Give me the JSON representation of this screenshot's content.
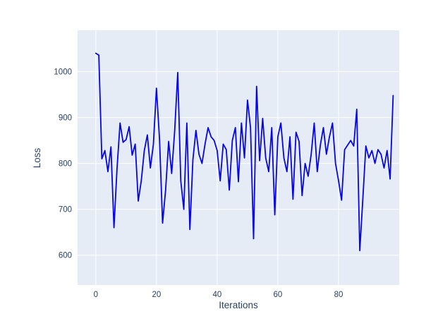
{
  "chart_data": {
    "type": "line",
    "title": "",
    "xlabel": "Iterations",
    "ylabel": "Loss",
    "xlim": [
      -6,
      100
    ],
    "ylim": [
      535,
      1090
    ],
    "x_ticks": [
      0,
      20,
      40,
      60,
      80
    ],
    "y_ticks": [
      600,
      700,
      800,
      900,
      1000
    ],
    "grid": true,
    "legend": "none",
    "plot_bg": "#e5ecf6",
    "grid_color": "#ffffff",
    "text_color": "#2a3f5f",
    "line_color": "#0505e8",
    "x": [
      0,
      1,
      2,
      3,
      4,
      5,
      6,
      7,
      8,
      9,
      10,
      11,
      12,
      13,
      14,
      15,
      16,
      17,
      18,
      19,
      20,
      21,
      22,
      23,
      24,
      25,
      26,
      27,
      28,
      29,
      30,
      31,
      32,
      33,
      34,
      35,
      36,
      37,
      38,
      39,
      40,
      41,
      42,
      43,
      44,
      45,
      46,
      47,
      48,
      49,
      50,
      51,
      52,
      53,
      54,
      55,
      56,
      57,
      58,
      59,
      60,
      61,
      62,
      63,
      64,
      65,
      66,
      67,
      68,
      69,
      70,
      71,
      72,
      73,
      74,
      75,
      76,
      77,
      78,
      79,
      80,
      81,
      82,
      83,
      84,
      85,
      86,
      87,
      88,
      89,
      90,
      91,
      92,
      93,
      94,
      95,
      96,
      97,
      98
    ],
    "series": [
      {
        "name": "loss",
        "values": [
          1040,
          1036,
          810,
          828,
          782,
          836,
          660,
          788,
          888,
          846,
          852,
          880,
          818,
          842,
          718,
          762,
          828,
          862,
          790,
          842,
          964,
          852,
          670,
          742,
          848,
          778,
          872,
          998,
          762,
          700,
          888,
          656,
          808,
          872,
          820,
          800,
          842,
          878,
          858,
          850,
          828,
          762,
          842,
          830,
          742,
          850,
          878,
          760,
          888,
          812,
          938,
          878,
          636,
          968,
          806,
          898,
          812,
          782,
          878,
          688,
          858,
          888,
          812,
          782,
          858,
          722,
          868,
          848,
          730,
          800,
          772,
          820,
          888,
          782,
          840,
          878,
          820,
          858,
          888,
          800,
          762,
          720,
          830,
          840,
          850,
          838,
          918,
          610,
          722,
          838,
          812,
          828,
          800,
          830,
          820,
          790,
          828,
          766,
          948
        ]
      }
    ]
  }
}
